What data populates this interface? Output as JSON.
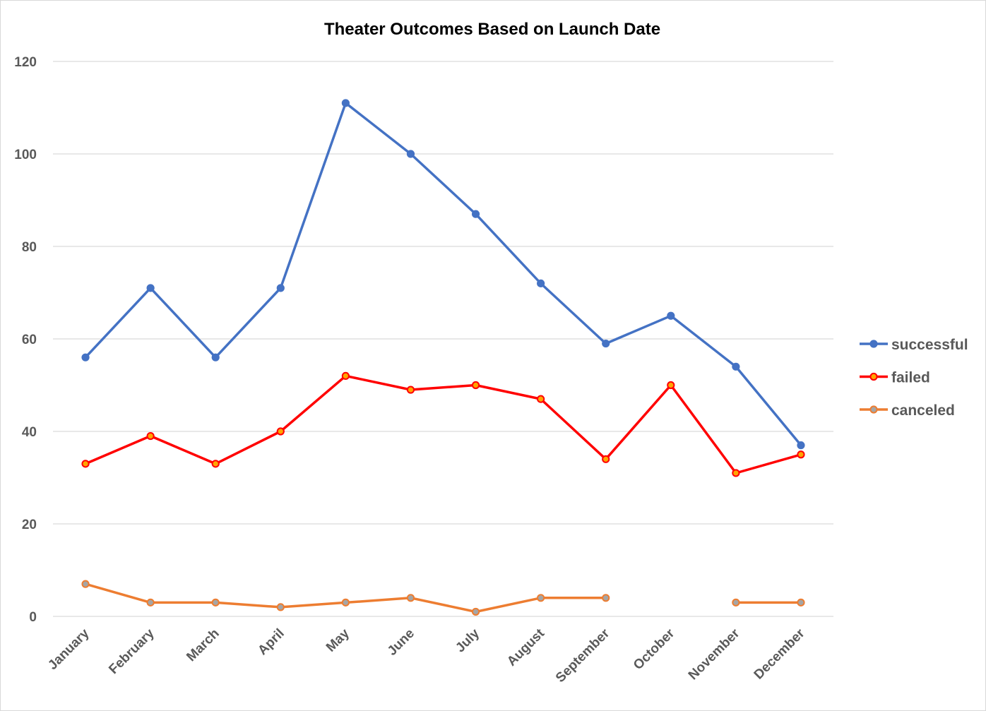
{
  "chart_data": {
    "type": "line",
    "title": "Theater Outcomes Based on Launch Date",
    "xlabel": "",
    "ylabel": "",
    "categories": [
      "January",
      "February",
      "March",
      "April",
      "May",
      "June",
      "July",
      "August",
      "September",
      "October",
      "November",
      "December"
    ],
    "ylim": [
      0,
      120
    ],
    "yticks": [
      0,
      20,
      40,
      60,
      80,
      100,
      120
    ],
    "grid": true,
    "legend_position": "right",
    "series": [
      {
        "name": "successful",
        "color": "#4472c4",
        "marker_fill": "#4472c4",
        "values": [
          56,
          71,
          56,
          71,
          111,
          100,
          87,
          72,
          59,
          65,
          54,
          37
        ]
      },
      {
        "name": "failed",
        "color": "#ff0000",
        "marker_fill": "#ffa500",
        "values": [
          33,
          39,
          33,
          40,
          52,
          49,
          50,
          47,
          34,
          50,
          31,
          35
        ]
      },
      {
        "name": "canceled",
        "color": "#ed7d31",
        "marker_fill": "#a5a5a5",
        "values": [
          7,
          3,
          3,
          2,
          3,
          4,
          1,
          4,
          4,
          null,
          3,
          3
        ]
      }
    ]
  }
}
